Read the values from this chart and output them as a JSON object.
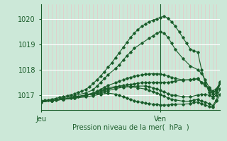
{
  "bg_color": "#cce8d8",
  "plot_bg_color": "#cce8d8",
  "line_color": "#1a5c2a",
  "grid_h_color": "#ffffff",
  "grid_v_minor_color": "#e8c8c8",
  "grid_v_major_color": "#ffffff",
  "xlabel": "Pression niveau de la mer(  hPa  )",
  "ylim": [
    1016.4,
    1020.6
  ],
  "yticks": [
    1017,
    1018,
    1019,
    1020
  ],
  "xtick_labels": [
    "Jeu",
    "Ven"
  ],
  "xtick_positions": [
    0.0,
    1.333
  ],
  "xlim": [
    0.0,
    2.0
  ],
  "vline_x": 1.333,
  "series": [
    [
      0.0,
      1016.75,
      0.042,
      1016.78,
      0.083,
      1016.8,
      0.125,
      1016.83,
      0.167,
      1016.86,
      0.208,
      1016.9,
      0.25,
      1016.93,
      0.292,
      1016.97,
      0.333,
      1017.0,
      0.375,
      1017.05,
      0.417,
      1017.1,
      0.458,
      1017.15,
      0.5,
      1017.22,
      0.542,
      1017.32,
      0.583,
      1017.45,
      0.625,
      1017.6,
      0.667,
      1017.75,
      0.708,
      1017.92,
      0.75,
      1018.1,
      0.792,
      1018.28,
      0.833,
      1018.48,
      0.875,
      1018.68,
      0.917,
      1018.88,
      0.958,
      1019.08,
      1.0,
      1019.28,
      1.042,
      1019.45,
      1.083,
      1019.6,
      1.125,
      1019.72,
      1.167,
      1019.82,
      1.208,
      1019.9,
      1.25,
      1019.97,
      1.292,
      1020.02,
      1.333,
      1020.08,
      1.375,
      1020.12,
      1.417,
      1020.05,
      1.458,
      1019.9,
      1.5,
      1019.72,
      1.542,
      1019.5,
      1.583,
      1019.28,
      1.625,
      1019.05,
      1.667,
      1018.82,
      1.708,
      1018.75,
      1.75,
      1018.7,
      1.792,
      1018.0,
      1.833,
      1017.5,
      1.875,
      1017.1,
      1.917,
      1016.88,
      1.958,
      1017.0,
      2.0,
      1017.45
    ],
    [
      0.0,
      1016.75,
      0.125,
      1016.8,
      0.25,
      1016.88,
      0.375,
      1016.97,
      0.5,
      1017.08,
      0.583,
      1017.2,
      0.625,
      1017.35,
      0.667,
      1017.5,
      0.708,
      1017.65,
      0.75,
      1017.8,
      0.833,
      1018.05,
      0.875,
      1018.2,
      0.917,
      1018.38,
      0.958,
      1018.55,
      1.0,
      1018.7,
      1.042,
      1018.85,
      1.125,
      1019.05,
      1.208,
      1019.25,
      1.25,
      1019.35,
      1.292,
      1019.45,
      1.333,
      1019.52,
      1.375,
      1019.45,
      1.417,
      1019.28,
      1.458,
      1019.05,
      1.5,
      1018.8,
      1.583,
      1018.45,
      1.667,
      1018.15,
      1.75,
      1018.0,
      1.792,
      1017.85,
      1.833,
      1017.6,
      1.875,
      1017.3,
      1.917,
      1017.05,
      1.958,
      1017.2,
      2.0,
      1017.52
    ],
    [
      0.0,
      1016.73,
      0.125,
      1016.77,
      0.25,
      1016.83,
      0.375,
      1016.92,
      0.5,
      1017.0,
      0.583,
      1017.08,
      0.625,
      1017.15,
      0.667,
      1017.22,
      0.708,
      1017.3,
      0.75,
      1017.38,
      0.833,
      1017.48,
      0.875,
      1017.55,
      0.917,
      1017.6,
      0.958,
      1017.65,
      1.0,
      1017.7,
      1.042,
      1017.73,
      1.083,
      1017.77,
      1.125,
      1017.8,
      1.167,
      1017.82,
      1.208,
      1017.83,
      1.25,
      1017.84,
      1.292,
      1017.84,
      1.333,
      1017.83,
      1.375,
      1017.8,
      1.417,
      1017.75,
      1.458,
      1017.7,
      1.5,
      1017.65,
      1.583,
      1017.6,
      1.667,
      1017.6,
      1.708,
      1017.62,
      1.75,
      1017.65,
      1.792,
      1017.5,
      1.833,
      1017.4,
      1.875,
      1017.28,
      1.917,
      1017.15,
      1.958,
      1017.25,
      2.0,
      1017.48
    ],
    [
      0.0,
      1016.73,
      0.125,
      1016.77,
      0.25,
      1016.82,
      0.375,
      1016.9,
      0.5,
      1016.98,
      0.583,
      1017.03,
      0.625,
      1017.08,
      0.667,
      1017.13,
      0.708,
      1017.18,
      0.75,
      1017.23,
      0.833,
      1017.3,
      0.875,
      1017.35,
      0.917,
      1017.38,
      0.958,
      1017.4,
      1.0,
      1017.42,
      1.042,
      1017.44,
      1.083,
      1017.46,
      1.125,
      1017.48,
      1.167,
      1017.49,
      1.208,
      1017.5,
      1.25,
      1017.5,
      1.292,
      1017.5,
      1.333,
      1017.5,
      1.375,
      1017.5,
      1.417,
      1017.5,
      1.458,
      1017.52,
      1.5,
      1017.55,
      1.583,
      1017.58,
      1.667,
      1017.6,
      1.708,
      1017.62,
      1.75,
      1017.63,
      1.792,
      1017.48,
      1.833,
      1017.38,
      1.875,
      1017.22,
      1.917,
      1017.05,
      1.958,
      1017.18,
      2.0,
      1017.48
    ],
    [
      0.0,
      1016.72,
      0.167,
      1016.78,
      0.333,
      1016.88,
      0.417,
      1016.93,
      0.5,
      1016.98,
      0.583,
      1017.03,
      0.667,
      1017.08,
      0.708,
      1017.12,
      0.75,
      1017.17,
      0.833,
      1017.25,
      0.917,
      1017.3,
      1.0,
      1017.33,
      1.083,
      1017.35,
      1.167,
      1017.35,
      1.208,
      1017.33,
      1.25,
      1017.28,
      1.292,
      1017.23,
      1.333,
      1017.18,
      1.375,
      1017.12,
      1.417,
      1017.05,
      1.458,
      1017.0,
      1.5,
      1016.98,
      1.583,
      1016.93,
      1.667,
      1016.92,
      1.75,
      1017.0,
      1.792,
      1017.02,
      1.833,
      1017.02,
      1.875,
      1016.98,
      1.917,
      1016.92,
      1.958,
      1017.1,
      2.0,
      1017.45
    ],
    [
      0.0,
      1016.72,
      0.125,
      1016.77,
      0.25,
      1016.82,
      0.375,
      1016.88,
      0.5,
      1016.97,
      0.583,
      1017.05,
      0.625,
      1017.12,
      0.667,
      1017.18,
      0.708,
      1017.23,
      0.75,
      1017.28,
      0.833,
      1017.33,
      0.917,
      1017.33,
      1.0,
      1017.32,
      1.083,
      1017.28,
      1.167,
      1017.23,
      1.208,
      1017.18,
      1.25,
      1017.13,
      1.292,
      1017.08,
      1.333,
      1017.02,
      1.375,
      1016.95,
      1.417,
      1016.88,
      1.458,
      1016.83,
      1.5,
      1016.8,
      1.583,
      1016.75,
      1.667,
      1016.75,
      1.708,
      1016.8,
      1.75,
      1016.82,
      1.792,
      1016.75,
      1.833,
      1016.72,
      1.875,
      1016.65,
      1.917,
      1016.58,
      1.958,
      1016.8,
      2.0,
      1017.25
    ],
    [
      0.0,
      1016.72,
      0.125,
      1016.77,
      0.25,
      1016.82,
      0.375,
      1016.87,
      0.5,
      1016.92,
      0.583,
      1016.97,
      0.667,
      1017.02,
      0.75,
      1017.07,
      0.833,
      1017.03,
      0.875,
      1016.98,
      0.917,
      1016.93,
      0.958,
      1016.87,
      1.0,
      1016.82,
      1.042,
      1016.77,
      1.083,
      1016.73,
      1.125,
      1016.7,
      1.167,
      1016.67,
      1.208,
      1016.65,
      1.25,
      1016.63,
      1.292,
      1016.62,
      1.333,
      1016.6,
      1.375,
      1016.6,
      1.417,
      1016.6,
      1.458,
      1016.62,
      1.5,
      1016.63,
      1.583,
      1016.63,
      1.667,
      1016.65,
      1.708,
      1016.7,
      1.75,
      1016.72,
      1.792,
      1016.65,
      1.833,
      1016.6,
      1.875,
      1016.55,
      1.917,
      1016.5,
      1.958,
      1016.75,
      2.0,
      1017.02
    ]
  ]
}
